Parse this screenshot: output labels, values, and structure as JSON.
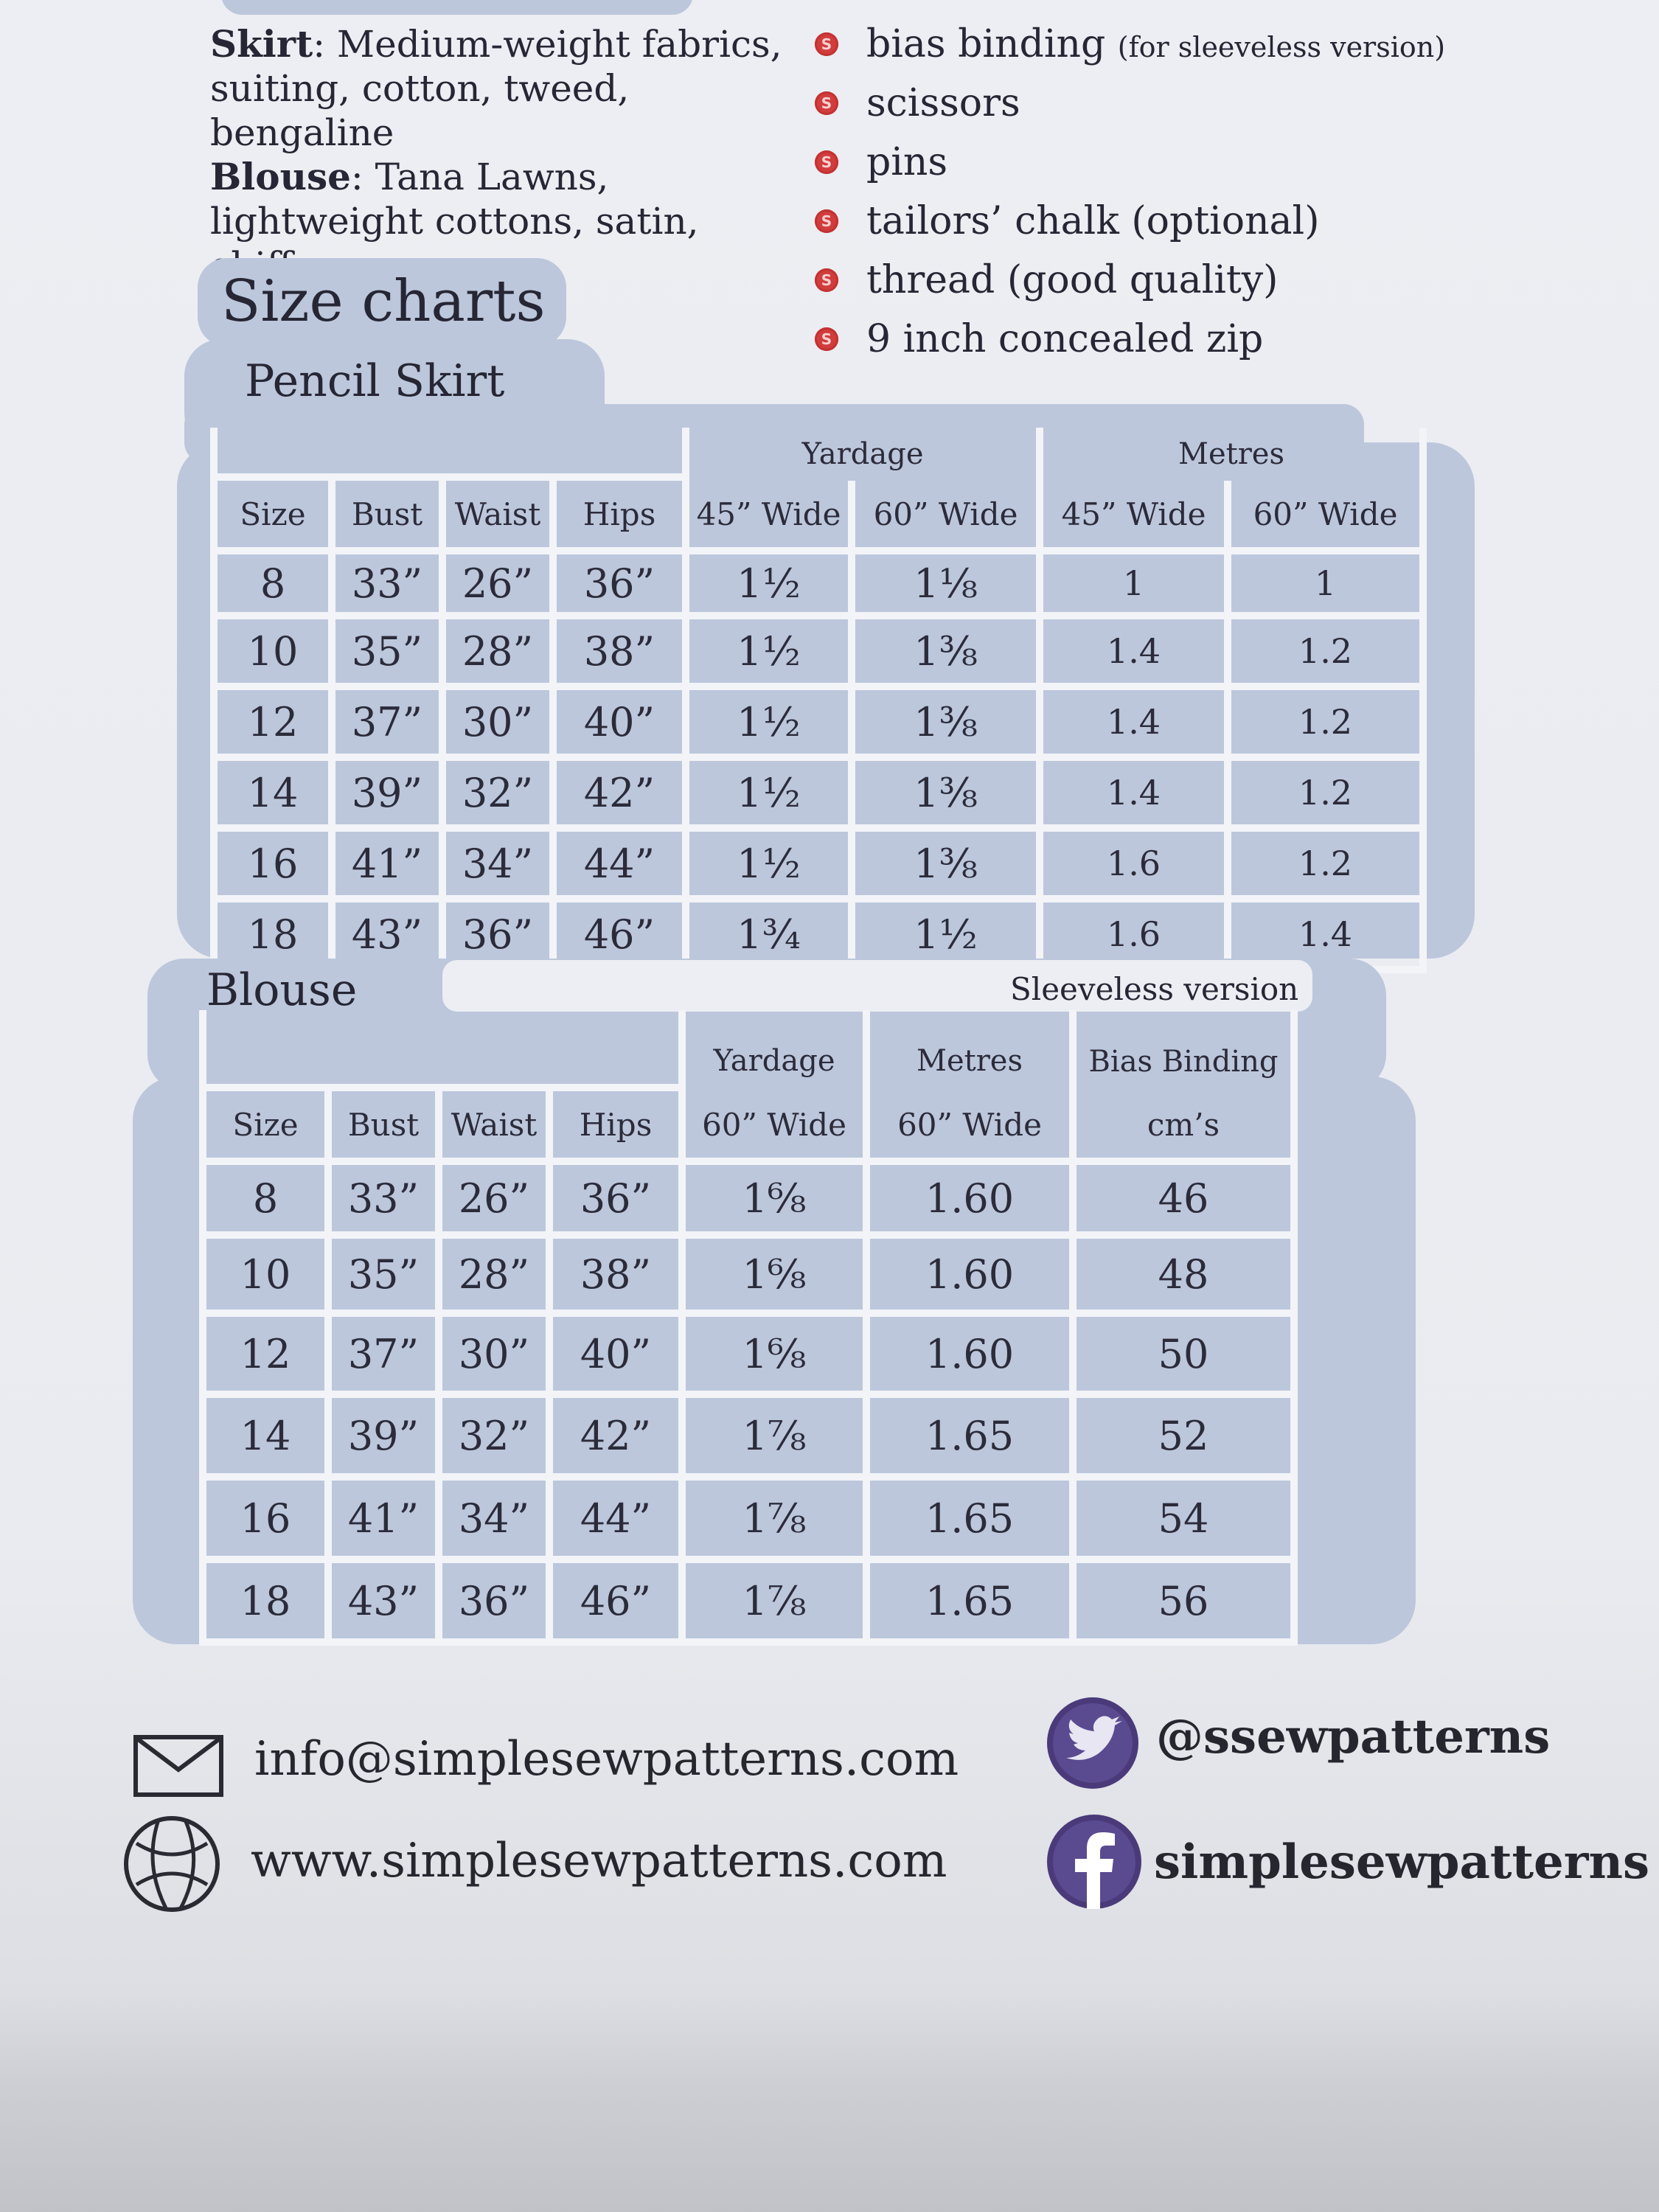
{
  "fabrics": {
    "skirt_label": "Skirt",
    "skirt_text": ": Medium-weight fabrics, suiting, cotton, tweed, bengaline",
    "blouse_label": "Blouse",
    "blouse_text": ": Tana Lawns, lightweight cottons, satin, chiffon."
  },
  "requirements": [
    {
      "text": "bias binding",
      "note": "(for sleeveless version)"
    },
    {
      "text": "scissors",
      "note": ""
    },
    {
      "text": "pins",
      "note": ""
    },
    {
      "text": "tailors’ chalk (optional)",
      "note": ""
    },
    {
      "text": "thread (good quality)",
      "note": ""
    },
    {
      "text": "9 inch concealed zip",
      "note": ""
    }
  ],
  "size_charts": {
    "title": "Size charts",
    "pencil_skirt": {
      "title": "Pencil Skirt",
      "group_yardage": "Yardage",
      "group_metres": "Metres",
      "headers": [
        "Size",
        "Bust",
        "Waist",
        "Hips",
        "45” Wide",
        "60” Wide",
        "45” Wide",
        "60” Wide"
      ],
      "rows": [
        [
          "8",
          "33”",
          "26”",
          "36”",
          "1½",
          "1⅛",
          "1",
          "1"
        ],
        [
          "10",
          "35”",
          "28”",
          "38”",
          "1½",
          "1⅜",
          "1.4",
          "1.2"
        ],
        [
          "12",
          "37”",
          "30”",
          "40”",
          "1½",
          "1⅜",
          "1.4",
          "1.2"
        ],
        [
          "14",
          "39”",
          "32”",
          "42”",
          "1½",
          "1⅜",
          "1.4",
          "1.2"
        ],
        [
          "16",
          "41”",
          "34”",
          "44”",
          "1½",
          "1⅜",
          "1.6",
          "1.2"
        ],
        [
          "18",
          "43”",
          "36”",
          "46”",
          "1¾",
          "1½",
          "1.6",
          "1.4"
        ]
      ]
    },
    "blouse": {
      "title": "Blouse",
      "sleeveless_note": "Sleeveless version",
      "group_yardage": "Yardage",
      "group_metres": "Metres",
      "group_bias": "Bias Binding",
      "headers": [
        "Size",
        "Bust",
        "Waist",
        "Hips",
        "60” Wide",
        "60” Wide",
        "cm’s"
      ],
      "rows": [
        [
          "8",
          "33”",
          "26”",
          "36”",
          "1⁶⁄₈",
          "1.60",
          "46"
        ],
        [
          "10",
          "35”",
          "28”",
          "38”",
          "1⁶⁄₈",
          "1.60",
          "48"
        ],
        [
          "12",
          "37”",
          "30”",
          "40”",
          "1⁶⁄₈",
          "1.60",
          "50"
        ],
        [
          "14",
          "39”",
          "32”",
          "42”",
          "1⅞",
          "1.65",
          "52"
        ],
        [
          "16",
          "41”",
          "34”",
          "44”",
          "1⅞",
          "1.65",
          "54"
        ],
        [
          "18",
          "43”",
          "36”",
          "46”",
          "1⅞",
          "1.65",
          "56"
        ]
      ]
    }
  },
  "contacts": {
    "email": "info@simplesewpatterns.com",
    "website": "www.simplesewpatterns.com",
    "twitter": "@ssewpatterns",
    "facebook": "simplesewpatterns"
  },
  "colors": {
    "table_fill": "#bcc7dc",
    "grid_lines": "#f3f4f8",
    "bullet_red": "#d13c3c",
    "social_purple": "#4b3a7a"
  },
  "icons": [
    "envelope-icon",
    "globe-icon",
    "twitter-icon",
    "facebook-icon",
    "bullet-icon"
  ]
}
